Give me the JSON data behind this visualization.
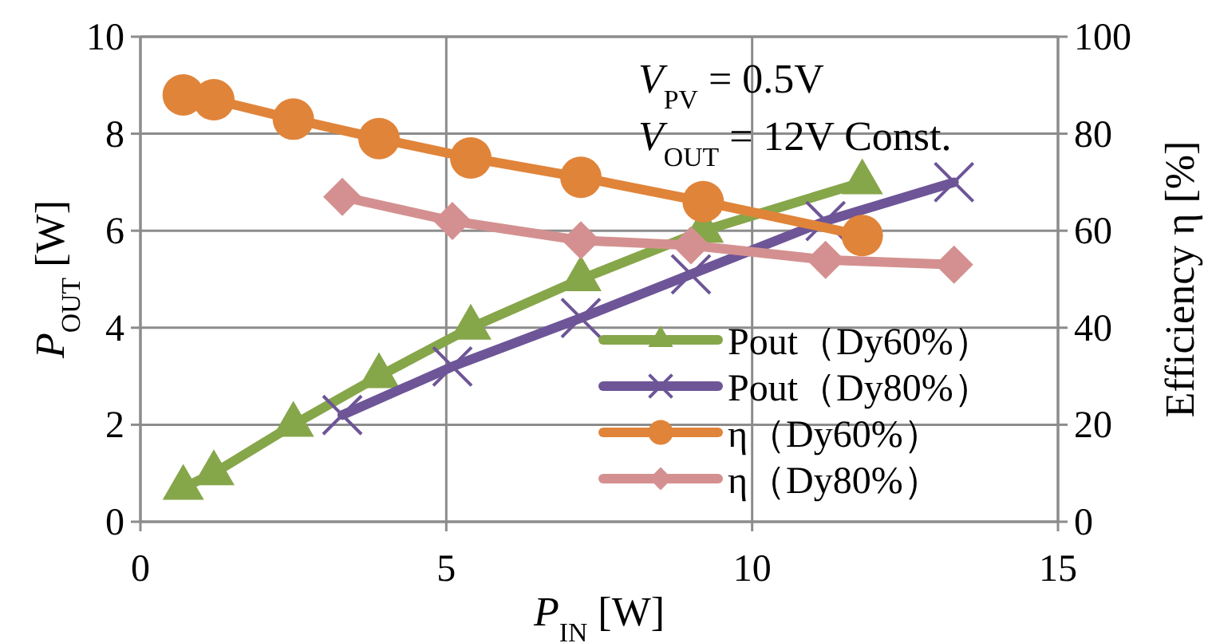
{
  "chart_data": {
    "type": "line",
    "xlabel": "P$_{IN}$ [W]",
    "ylabel": "P$_{OUT}$ [W]",
    "y2label": "Efficiency η [%]",
    "xlim": [
      0,
      15
    ],
    "xticks": [
      0,
      5,
      10,
      15
    ],
    "ylim": [
      0,
      10
    ],
    "yticks": [
      0,
      2,
      4,
      6,
      8,
      10
    ],
    "y2lim": [
      0,
      100
    ],
    "y2ticks": [
      0,
      20,
      40,
      60,
      80,
      100
    ],
    "grid": true,
    "legend": "bottom right",
    "line_style": "solid",
    "annotations": [
      "V$_{PV}$ = 0.5V",
      "V$_{OUT}$ = 12V Const."
    ],
    "series": [
      {
        "name": "Pout（Dy60%）",
        "color": "#86a64a",
        "marker": "triangle",
        "x": [
          0.7,
          1.2,
          2.5,
          3.9,
          5.4,
          7.2,
          9.2,
          11.8
        ],
        "values": [
          0.7,
          1.0,
          2.0,
          3.0,
          4.0,
          5.0,
          6.0,
          7.0
        ]
      },
      {
        "name": "Pout（Dy80%）",
        "color": "#6e5597",
        "marker": "cross",
        "x": [
          3.3,
          5.1,
          7.2,
          9.0,
          11.2,
          13.3
        ],
        "values": [
          2.2,
          3.2,
          4.2,
          5.1,
          6.2,
          7.0
        ]
      },
      {
        "name": "η（Dy60%）",
        "color": "#e0843a",
        "marker": "circle",
        "axis": "y2",
        "x": [
          0.7,
          1.2,
          2.5,
          3.9,
          5.4,
          7.2,
          9.2,
          11.8
        ],
        "values": [
          88,
          87,
          83,
          79,
          75,
          71,
          66,
          59
        ]
      },
      {
        "name": "η（Dy80%）",
        "color": "#d49090",
        "marker": "diamond",
        "axis": "y2",
        "x": [
          3.3,
          5.1,
          7.2,
          9.0,
          11.2,
          13.3
        ],
        "values": [
          67,
          62,
          58,
          57,
          54,
          53
        ]
      }
    ]
  }
}
